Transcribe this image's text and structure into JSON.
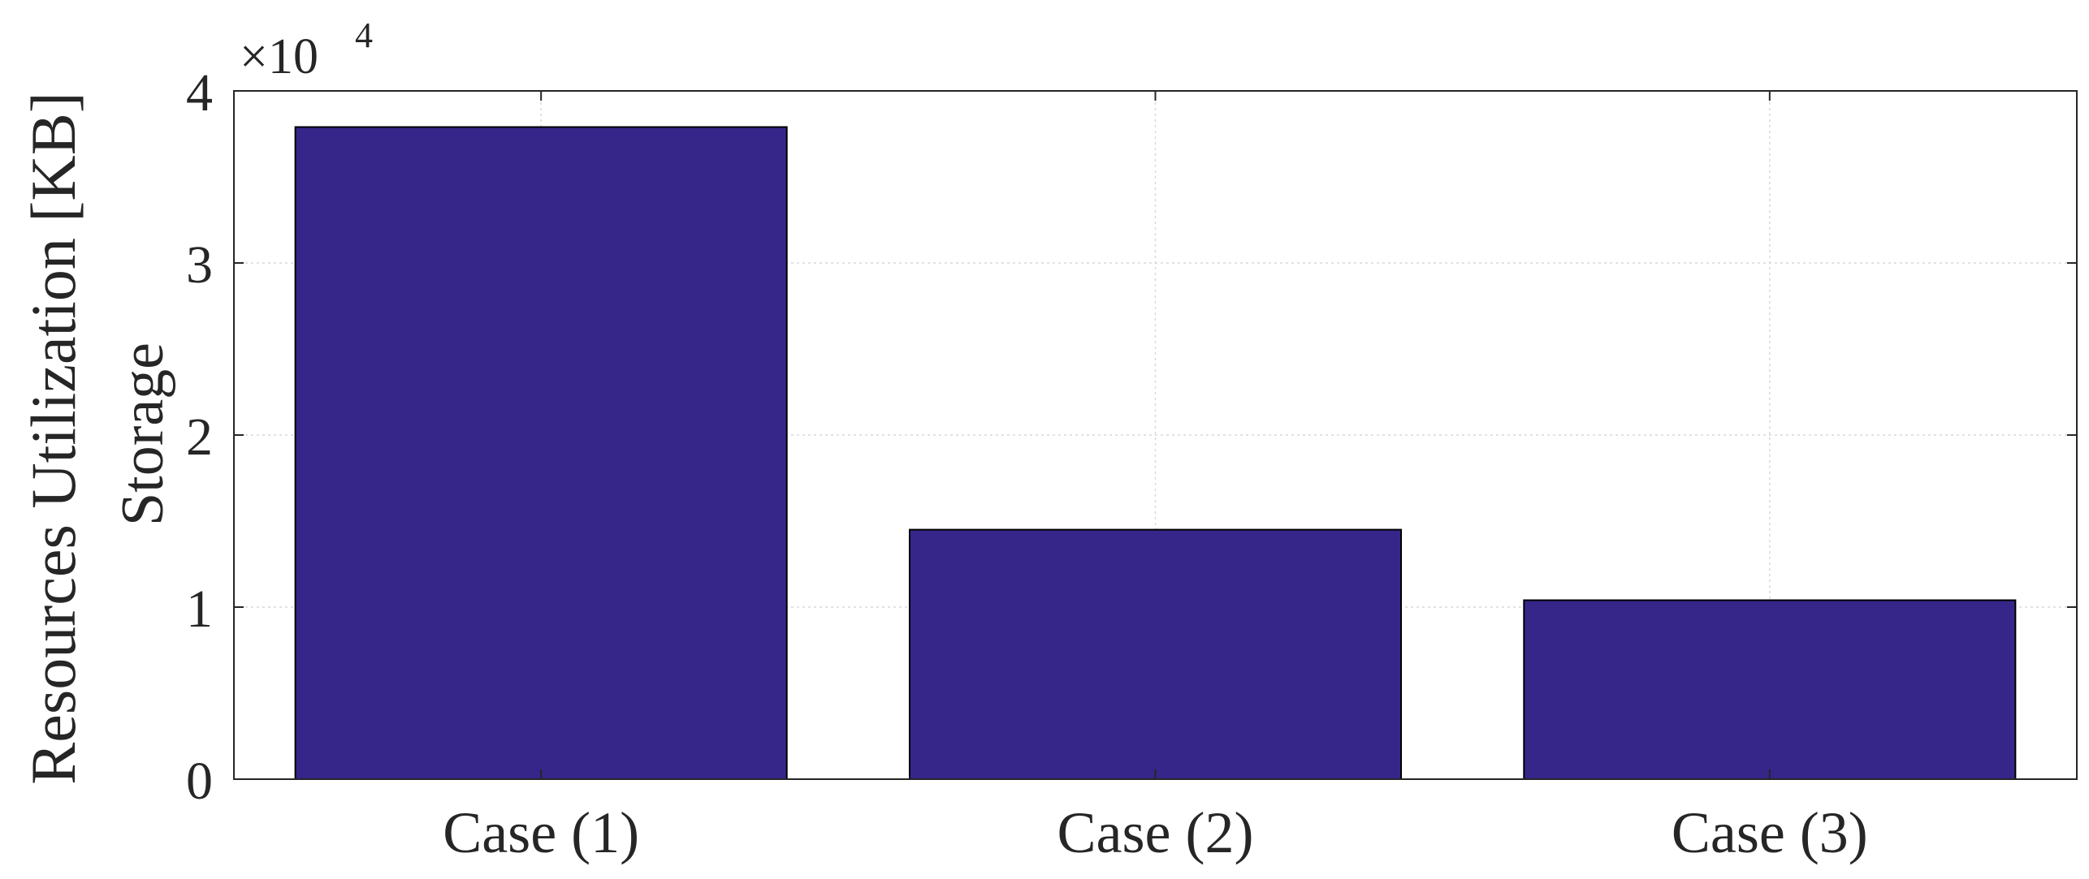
{
  "chart_data": {
    "type": "bar",
    "title": "",
    "xlabel": "",
    "ylabel_lines": [
      "Resources Utilization  [KB]",
      "Storage"
    ],
    "categories": [
      "Case (1)",
      "Case (2)",
      "Case (3)"
    ],
    "values": [
      37900,
      14500,
      10400
    ],
    "ylim": [
      0,
      40000
    ],
    "yticks": [
      0,
      10000,
      20000,
      30000,
      40000
    ],
    "ytick_labels": [
      "0",
      "1",
      "2",
      "3",
      "4"
    ],
    "multiplier": {
      "base": "×10",
      "exponent": "4"
    },
    "grid": true,
    "bar_color": "#362689",
    "bar_edge_color": "#000000"
  }
}
